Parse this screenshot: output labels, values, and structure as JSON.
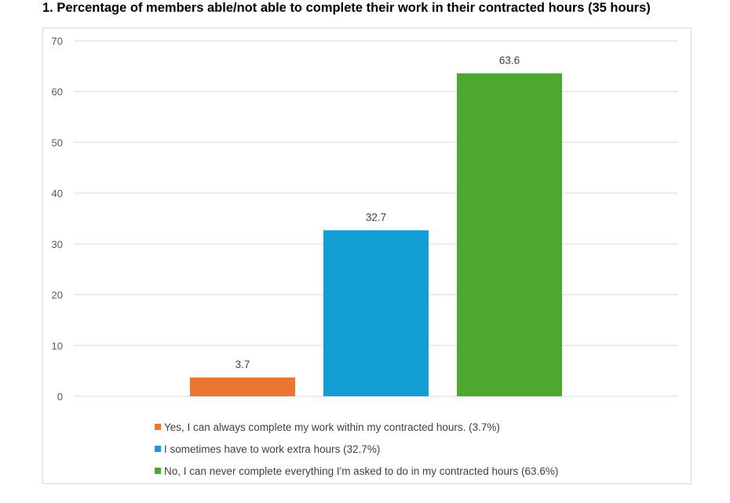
{
  "chart_data": {
    "type": "bar",
    "title": "1.  Percentage of members able/not able to complete their work in their contracted hours (35 hours)",
    "ylim": [
      0,
      70
    ],
    "yticks": [
      "0",
      "10",
      "20",
      "30",
      "40",
      "50",
      "60",
      "70"
    ],
    "grid": true,
    "legend_position": "bottom",
    "series": [
      {
        "name": "Yes, I can always complete my work within my contracted hours. (3.7%)",
        "value": 3.7,
        "label": "3.7",
        "color": "#ED7532"
      },
      {
        "name": "I sometimes have to work extra hours (32.7%)",
        "value": 32.7,
        "label": "32.7",
        "color": "#139FD6"
      },
      {
        "name": "No, I can never complete everything I'm asked to do in my contracted hours (63.6%)",
        "value": 63.6,
        "label": "63.6",
        "color": "#4EA72E"
      }
    ]
  }
}
